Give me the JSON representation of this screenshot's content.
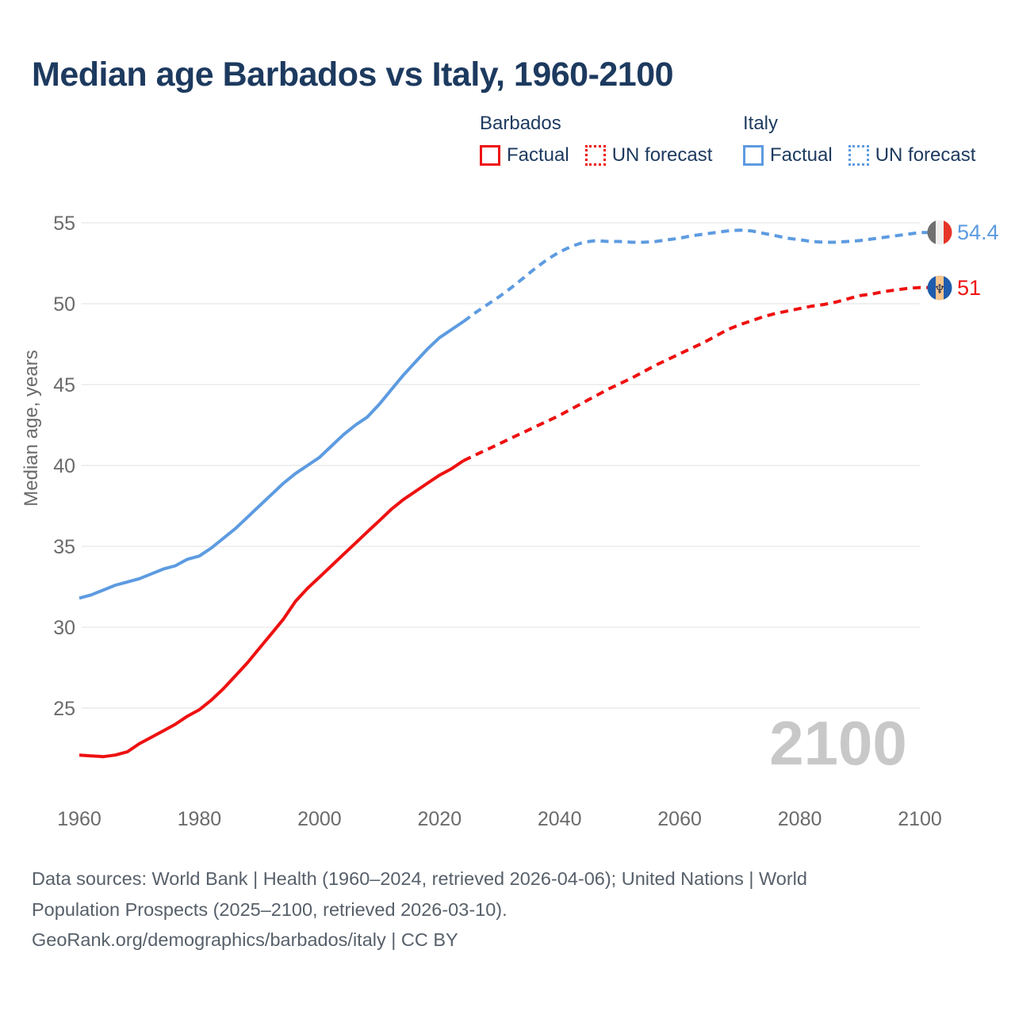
{
  "title": "Median age Barbados vs Italy, 1960-2100",
  "legend": {
    "barbados": {
      "title": "Barbados",
      "factual": "Factual",
      "forecast": "UN forecast"
    },
    "italy": {
      "title": "Italy",
      "factual": "Factual",
      "forecast": "UN forecast"
    }
  },
  "colors": {
    "navy": "#1d3a5f",
    "barbados": "#ee1111",
    "italy": "#5d9be1",
    "axis": "#6b6b6b",
    "grid": "#ececec",
    "watermark": "#c8c8c8",
    "footer": "#57606a"
  },
  "watermark": "2100",
  "y_axis": {
    "label": "Median age, years",
    "ticks": [
      55,
      50,
      45,
      40,
      35,
      30,
      25
    ]
  },
  "x_axis": {
    "ticks": [
      1960,
      1980,
      2000,
      2020,
      2040,
      2060,
      2080,
      2100
    ]
  },
  "endpoints": {
    "italy": {
      "country": "Italy",
      "value": "54.4"
    },
    "barbados": {
      "country": "Barbados",
      "value": "51"
    }
  },
  "flags": {
    "italy": {
      "left": "#707070",
      "mid": "#f0efed",
      "right": "#e63428"
    },
    "barbados": {
      "left": "#1f5cad",
      "mid": "#f7c48e",
      "right": "#1f5cad",
      "trident": "#1c2b4d",
      "trident_glyph": "♆"
    }
  },
  "footer": {
    "lines": [
      "Data sources: World Bank | Health (1960–2024, retrieved 2026-04-06); United Nations | World",
      "Population Prospects (2025–2100, retrieved 2026-03-10).",
      "GeoRank.org/demographics/barbados/italy | CC BY"
    ]
  },
  "chart_data": {
    "type": "line",
    "title": "Median age Barbados vs Italy, 1960-2100",
    "xlabel": "",
    "ylabel": "Median age, years",
    "xlim": [
      1960,
      2100
    ],
    "ylim": [
      25,
      55
    ],
    "grid": "horizontal",
    "legend_position": "top",
    "series": [
      {
        "name": "Barbados — Factual",
        "style": "solid",
        "color": "#ee1111",
        "points": [
          [
            1960,
            22.1
          ],
          [
            1962,
            22.05
          ],
          [
            1964,
            22.0
          ],
          [
            1966,
            22.1
          ],
          [
            1968,
            22.3
          ],
          [
            1970,
            22.8
          ],
          [
            1972,
            23.2
          ],
          [
            1974,
            23.6
          ],
          [
            1976,
            24.0
          ],
          [
            1978,
            24.5
          ],
          [
            1980,
            24.9
          ],
          [
            1982,
            25.5
          ],
          [
            1984,
            26.2
          ],
          [
            1986,
            27.0
          ],
          [
            1988,
            27.8
          ],
          [
            1990,
            28.7
          ],
          [
            1992,
            29.6
          ],
          [
            1994,
            30.5
          ],
          [
            1996,
            31.6
          ],
          [
            1998,
            32.4
          ],
          [
            2000,
            33.1
          ],
          [
            2002,
            33.8
          ],
          [
            2004,
            34.5
          ],
          [
            2006,
            35.2
          ],
          [
            2008,
            35.9
          ],
          [
            2010,
            36.6
          ],
          [
            2012,
            37.3
          ],
          [
            2014,
            37.9
          ],
          [
            2016,
            38.4
          ],
          [
            2018,
            38.9
          ],
          [
            2020,
            39.4
          ],
          [
            2022,
            39.8
          ],
          [
            2024,
            40.3
          ]
        ]
      },
      {
        "name": "Barbados — UN forecast",
        "style": "dashed",
        "color": "#ee1111",
        "extend": true,
        "points": [
          [
            2024,
            40.3
          ],
          [
            2026,
            40.65
          ],
          [
            2028,
            41.0
          ],
          [
            2030,
            41.35
          ],
          [
            2032,
            41.7
          ],
          [
            2034,
            42.05
          ],
          [
            2036,
            42.4
          ],
          [
            2038,
            42.75
          ],
          [
            2040,
            43.1
          ],
          [
            2042,
            43.5
          ],
          [
            2044,
            43.9
          ],
          [
            2046,
            44.3
          ],
          [
            2048,
            44.7
          ],
          [
            2050,
            45.05
          ],
          [
            2052,
            45.4
          ],
          [
            2054,
            45.8
          ],
          [
            2056,
            46.2
          ],
          [
            2058,
            46.55
          ],
          [
            2060,
            46.9
          ],
          [
            2062,
            47.25
          ],
          [
            2064,
            47.6
          ],
          [
            2066,
            48.0
          ],
          [
            2068,
            48.4
          ],
          [
            2070,
            48.7
          ],
          [
            2072,
            48.95
          ],
          [
            2074,
            49.2
          ],
          [
            2076,
            49.4
          ],
          [
            2078,
            49.55
          ],
          [
            2080,
            49.7
          ],
          [
            2082,
            49.85
          ],
          [
            2084,
            49.95
          ],
          [
            2086,
            50.1
          ],
          [
            2088,
            50.3
          ],
          [
            2090,
            50.5
          ],
          [
            2092,
            50.6
          ],
          [
            2094,
            50.75
          ],
          [
            2096,
            50.85
          ],
          [
            2098,
            50.95
          ],
          [
            2100,
            51.0
          ]
        ]
      },
      {
        "name": "Italy — Factual",
        "style": "solid",
        "color": "#5d9be1",
        "points": [
          [
            1960,
            31.8
          ],
          [
            1962,
            32.0
          ],
          [
            1964,
            32.3
          ],
          [
            1966,
            32.6
          ],
          [
            1968,
            32.8
          ],
          [
            1970,
            33.0
          ],
          [
            1972,
            33.3
          ],
          [
            1974,
            33.6
          ],
          [
            1976,
            33.8
          ],
          [
            1978,
            34.2
          ],
          [
            1980,
            34.4
          ],
          [
            1982,
            34.9
          ],
          [
            1984,
            35.5
          ],
          [
            1986,
            36.1
          ],
          [
            1988,
            36.8
          ],
          [
            1990,
            37.5
          ],
          [
            1992,
            38.2
          ],
          [
            1994,
            38.9
          ],
          [
            1996,
            39.5
          ],
          [
            1998,
            40.0
          ],
          [
            2000,
            40.5
          ],
          [
            2002,
            41.2
          ],
          [
            2004,
            41.9
          ],
          [
            2006,
            42.5
          ],
          [
            2008,
            43.0
          ],
          [
            2010,
            43.8
          ],
          [
            2012,
            44.7
          ],
          [
            2014,
            45.6
          ],
          [
            2016,
            46.4
          ],
          [
            2018,
            47.2
          ],
          [
            2020,
            47.9
          ],
          [
            2022,
            48.4
          ],
          [
            2024,
            48.9
          ]
        ]
      },
      {
        "name": "Italy — UN forecast",
        "style": "dashed",
        "color": "#5d9be1",
        "extend": true,
        "points": [
          [
            2024,
            48.9
          ],
          [
            2026,
            49.45
          ],
          [
            2028,
            49.95
          ],
          [
            2030,
            50.45
          ],
          [
            2032,
            51.0
          ],
          [
            2034,
            51.6
          ],
          [
            2036,
            52.2
          ],
          [
            2038,
            52.75
          ],
          [
            2040,
            53.2
          ],
          [
            2042,
            53.55
          ],
          [
            2044,
            53.8
          ],
          [
            2046,
            53.9
          ],
          [
            2048,
            53.85
          ],
          [
            2050,
            53.85
          ],
          [
            2052,
            53.8
          ],
          [
            2054,
            53.8
          ],
          [
            2056,
            53.85
          ],
          [
            2058,
            53.95
          ],
          [
            2060,
            54.05
          ],
          [
            2062,
            54.2
          ],
          [
            2064,
            54.3
          ],
          [
            2066,
            54.4
          ],
          [
            2068,
            54.5
          ],
          [
            2070,
            54.55
          ],
          [
            2072,
            54.5
          ],
          [
            2074,
            54.35
          ],
          [
            2076,
            54.2
          ],
          [
            2078,
            54.05
          ],
          [
            2080,
            53.95
          ],
          [
            2082,
            53.85
          ],
          [
            2084,
            53.8
          ],
          [
            2086,
            53.8
          ],
          [
            2088,
            53.85
          ],
          [
            2090,
            53.9
          ],
          [
            2092,
            54.0
          ],
          [
            2094,
            54.1
          ],
          [
            2096,
            54.2
          ],
          [
            2098,
            54.3
          ],
          [
            2100,
            54.4
          ]
        ]
      }
    ],
    "end_labels": [
      {
        "series": "Italy",
        "value": 54.4
      },
      {
        "series": "Barbados",
        "value": 51
      }
    ]
  }
}
